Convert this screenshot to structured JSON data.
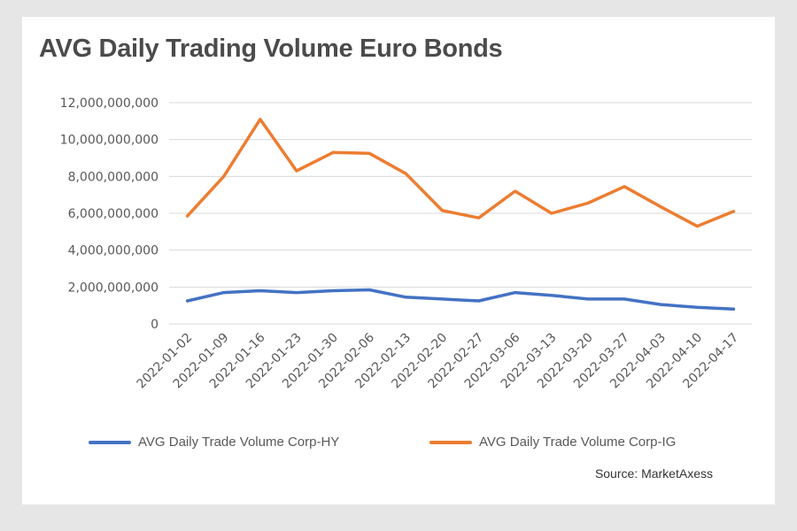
{
  "chart_data": {
    "type": "line",
    "title": "AVG Daily Trading Volume Euro Bonds",
    "xlabel": "",
    "ylabel": "",
    "ylim": [
      0,
      12000000000
    ],
    "yticks": [
      {
        "value": 0,
        "label": "0"
      },
      {
        "value": 2000000000,
        "label": "2,000,000,000"
      },
      {
        "value": 4000000000,
        "label": "4,000,000,000"
      },
      {
        "value": 6000000000,
        "label": "6,000,000,000"
      },
      {
        "value": 8000000000,
        "label": "8,000,000,000"
      },
      {
        "value": 10000000000,
        "label": "10,000,000,000"
      },
      {
        "value": 12000000000,
        "label": "12,000,000,000"
      }
    ],
    "grid": true,
    "legend_position": "bottom",
    "categories": [
      "2022-01-02",
      "2022-01-09",
      "2022-01-16",
      "2022-01-23",
      "2022-01-30",
      "2022-02-06",
      "2022-02-13",
      "2022-02-20",
      "2022-02-27",
      "2022-03-06",
      "2022-03-13",
      "2022-03-20",
      "2022-03-27",
      "2022-04-03",
      "2022-04-10",
      "2022-04-17"
    ],
    "series": [
      {
        "name": "AVG Daily Trade Volume Corp-HY",
        "color": "#4472c4",
        "values": [
          1250000000,
          1700000000,
          1800000000,
          1700000000,
          1800000000,
          1850000000,
          1450000000,
          1350000000,
          1250000000,
          1700000000,
          1550000000,
          1350000000,
          1350000000,
          1050000000,
          900000000,
          800000000
        ]
      },
      {
        "name": "AVG Daily Trade Volume Corp-IG",
        "color": "#ed7d31",
        "values": [
          5850000000,
          8000000000,
          11100000000,
          8300000000,
          9300000000,
          9250000000,
          8150000000,
          6150000000,
          5750000000,
          7200000000,
          6000000000,
          6550000000,
          7450000000,
          6350000000,
          5300000000,
          6100000000
        ]
      }
    ]
  },
  "footer": {
    "source": "Source: MarketAxess"
  }
}
